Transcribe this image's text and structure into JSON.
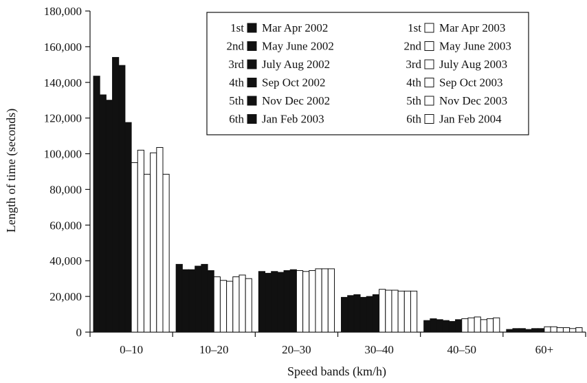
{
  "chart_data": {
    "type": "bar",
    "xlabel": "Speed bands (km/h)",
    "ylabel": "Length of time (seconds)",
    "ylim": [
      0,
      180000
    ],
    "yticks": [
      0,
      20000,
      40000,
      60000,
      80000,
      100000,
      120000,
      140000,
      160000,
      180000
    ],
    "ytick_labels": [
      "0",
      "20,000",
      "40,000",
      "60,000",
      "80,000",
      "100,000",
      "120,000",
      "140,000",
      "160,000",
      "180,000"
    ],
    "grid": false,
    "legend_position": "top-right",
    "categories": [
      "0–10",
      "10–20",
      "20–30",
      "30–40",
      "40–50",
      "60+"
    ],
    "series": [
      {
        "rank": "1st",
        "name": "Mar Apr 2002",
        "fill": "#111111",
        "values": [
          143500,
          38000,
          34000,
          19500,
          6500,
          1500
        ]
      },
      {
        "rank": "2nd",
        "name": "May June 2002",
        "fill": "#111111",
        "values": [
          133000,
          35000,
          33000,
          20500,
          7500,
          2000
        ]
      },
      {
        "rank": "3rd",
        "name": "July Aug 2002",
        "fill": "#111111",
        "values": [
          130000,
          35000,
          34000,
          21000,
          7000,
          2000
        ]
      },
      {
        "rank": "4th",
        "name": "Sep Oct 2002",
        "fill": "#111111",
        "values": [
          154000,
          37000,
          33500,
          19500,
          6500,
          1500
        ]
      },
      {
        "rank": "5th",
        "name": "Nov Dec 2002",
        "fill": "#111111",
        "values": [
          149500,
          38000,
          34500,
          20000,
          6000,
          2000
        ]
      },
      {
        "rank": "6th",
        "name": "Jan Feb 2003",
        "fill": "#111111",
        "values": [
          117500,
          34500,
          35000,
          21000,
          7000,
          2000
        ]
      },
      {
        "rank": "1st",
        "name": "Mar Apr 2003",
        "fill": "#ffffff",
        "values": [
          95000,
          31000,
          34500,
          24000,
          7500,
          3000
        ]
      },
      {
        "rank": "2nd",
        "name": "May June 2003",
        "fill": "#ffffff",
        "values": [
          102000,
          29000,
          34000,
          23500,
          8000,
          3000
        ]
      },
      {
        "rank": "3rd",
        "name": "July Aug 2003",
        "fill": "#ffffff",
        "values": [
          88500,
          28500,
          34500,
          23500,
          8500,
          2500
        ]
      },
      {
        "rank": "4th",
        "name": "Sep Oct 2003",
        "fill": "#ffffff",
        "values": [
          100500,
          31000,
          35500,
          23000,
          7000,
          2500
        ]
      },
      {
        "rank": "5th",
        "name": "Nov Dec 2003",
        "fill": "#ffffff",
        "values": [
          103500,
          32000,
          35500,
          23000,
          7500,
          2000
        ]
      },
      {
        "rank": "6th",
        "name": "Jan Feb 2004",
        "fill": "#ffffff",
        "values": [
          88500,
          30000,
          35500,
          23000,
          8000,
          2500
        ]
      }
    ]
  }
}
